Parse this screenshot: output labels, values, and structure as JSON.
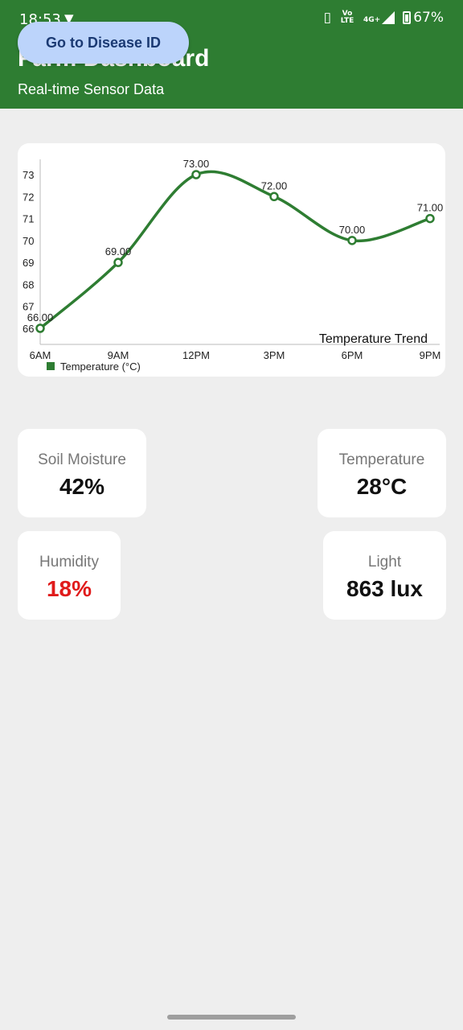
{
  "status_bar": {
    "time": "18:53",
    "vpn_icon": "shield-v-icon",
    "network_small": "Vo LTE",
    "network_type": "4G+",
    "battery": "67%"
  },
  "header": {
    "title": "Farm Dashboard",
    "subtitle": "Real-time Sensor Data",
    "color": "#2e7d32"
  },
  "disease_button": {
    "label": "Go to Disease ID",
    "color": "#bcd4fb"
  },
  "chart_data": {
    "type": "line",
    "title": "Temperature Trend",
    "categories": [
      "6AM",
      "9AM",
      "12PM",
      "3PM",
      "6PM",
      "9PM"
    ],
    "series": [
      {
        "name": "Temperature (°C)",
        "values": [
          66,
          69,
          73,
          72,
          70,
          71
        ],
        "color": "#2e7d32"
      }
    ],
    "data_labels": [
      "66.00",
      "69.00",
      "73.00",
      "72.00",
      "70.00",
      "71.00"
    ],
    "yticks": [
      66,
      67,
      68,
      69,
      70,
      71,
      72,
      73
    ],
    "ylim": [
      66,
      73
    ],
    "grid": false,
    "legend": "bottom-left",
    "smooth": true
  },
  "sensors": {
    "soil_moisture": {
      "label": "Soil Moisture",
      "value": "42%"
    },
    "temperature": {
      "label": "Temperature",
      "value": "28°C"
    },
    "humidity": {
      "label": "Humidity",
      "value": "18%",
      "color": "#e01b1b"
    },
    "light": {
      "label": "Light",
      "value": "863 lux"
    }
  }
}
